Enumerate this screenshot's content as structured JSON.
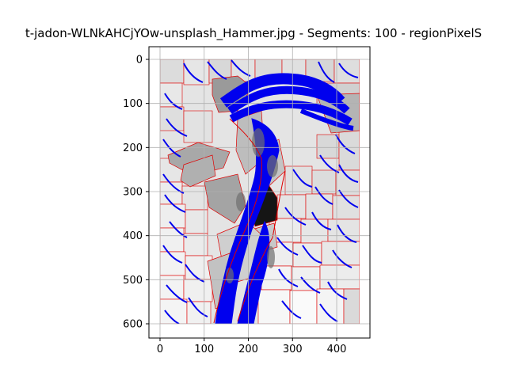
{
  "chart_data": {
    "type": "image",
    "title": "t-jadon-WLNkAHCjYOw-unsplash_Hammer.jpg - Segments: 100 - regionPixelS",
    "x_ticks": [
      0,
      100,
      200,
      300,
      400
    ],
    "y_ticks": [
      0,
      100,
      200,
      300,
      400,
      500,
      600
    ],
    "xlim": [
      -25,
      475
    ],
    "ylim": [
      630,
      -20
    ],
    "image_extent": {
      "x": [
        0,
        452
      ],
      "y": [
        0,
        600
      ]
    },
    "grid": true,
    "overlays": [
      {
        "name": "segment boundaries",
        "color": "#ff0000"
      },
      {
        "name": "contours",
        "color": "#0000ff"
      }
    ],
    "subject": "hammer"
  }
}
